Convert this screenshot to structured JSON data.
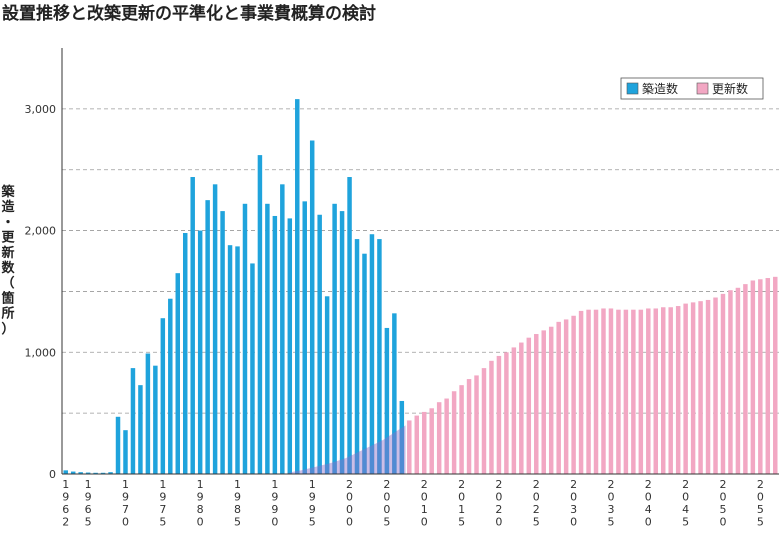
{
  "chart_data": {
    "type": "bar",
    "title": "設置推移と改築更新の平準化と事業費概算の検討",
    "ylabel": "築造・更新数（箇所）",
    "xlabel": "",
    "ylim": [
      0,
      3500
    ],
    "yticks": [
      0,
      1000,
      2000,
      3000
    ],
    "ytick_labels": [
      "0",
      "1,000",
      "2,000",
      "3,000"
    ],
    "grid": true,
    "legend": "top-right",
    "x_start": 1962,
    "x_end": 2057,
    "xtick_labels": [
      "1962",
      "1965",
      "1970",
      "1975",
      "1980",
      "1985",
      "1990",
      "1995",
      "2000",
      "2005",
      "2010",
      "2015",
      "2020",
      "2025",
      "2030",
      "2035",
      "2040",
      "2045",
      "2050",
      "2055"
    ],
    "series": [
      {
        "name": "築造数",
        "color": "#1fa3dc",
        "x": [
          1962,
          1963,
          1964,
          1965,
          1966,
          1967,
          1968,
          1969,
          1970,
          1971,
          1972,
          1973,
          1974,
          1975,
          1976,
          1977,
          1978,
          1979,
          1980,
          1981,
          1982,
          1983,
          1984,
          1985,
          1986,
          1987,
          1988,
          1989,
          1990,
          1991,
          1992,
          1993,
          1994,
          1995,
          1996,
          1997,
          1998,
          1999,
          2000,
          2001,
          2002,
          2003,
          2004,
          2005,
          2006,
          2007
        ],
        "values": [
          30,
          20,
          15,
          12,
          10,
          10,
          15,
          470,
          360,
          870,
          730,
          990,
          890,
          1280,
          1440,
          1650,
          1980,
          2440,
          2000,
          2250,
          2380,
          2160,
          1880,
          1870,
          2220,
          1730,
          2620,
          2220,
          2120,
          2380,
          2100,
          3080,
          2240,
          2740,
          2130,
          1460,
          2220,
          2160,
          2440,
          1930,
          1810,
          1970,
          1930,
          1200,
          1320,
          600
        ]
      },
      {
        "name": "更新数",
        "color": "#f2a7c3",
        "x": [
          1992,
          1993,
          1994,
          1995,
          1996,
          1997,
          1998,
          1999,
          2000,
          2001,
          2002,
          2003,
          2004,
          2005,
          2006,
          2007,
          2008,
          2009,
          2010,
          2011,
          2012,
          2013,
          2014,
          2015,
          2016,
          2017,
          2018,
          2019,
          2020,
          2021,
          2022,
          2023,
          2024,
          2025,
          2026,
          2027,
          2028,
          2029,
          2030,
          2031,
          2032,
          2033,
          2034,
          2035,
          2036,
          2037,
          2038,
          2039,
          2040,
          2041,
          2042,
          2043,
          2044,
          2045,
          2046,
          2047,
          2048,
          2049,
          2050,
          2051,
          2052,
          2053,
          2054,
          2055,
          2056,
          2057
        ],
        "values": [
          20,
          30,
          45,
          60,
          75,
          90,
          110,
          130,
          160,
          190,
          220,
          250,
          280,
          320,
          360,
          400,
          440,
          480,
          510,
          540,
          590,
          620,
          680,
          730,
          780,
          810,
          870,
          930,
          970,
          1000,
          1040,
          1080,
          1120,
          1150,
          1180,
          1210,
          1250,
          1270,
          1300,
          1340,
          1350,
          1350,
          1360,
          1360,
          1350,
          1350,
          1350,
          1350,
          1360,
          1360,
          1370,
          1370,
          1380,
          1400,
          1410,
          1420,
          1430,
          1450,
          1480,
          1510,
          1530,
          1560,
          1590,
          1600,
          1610,
          1620
        ]
      }
    ]
  }
}
